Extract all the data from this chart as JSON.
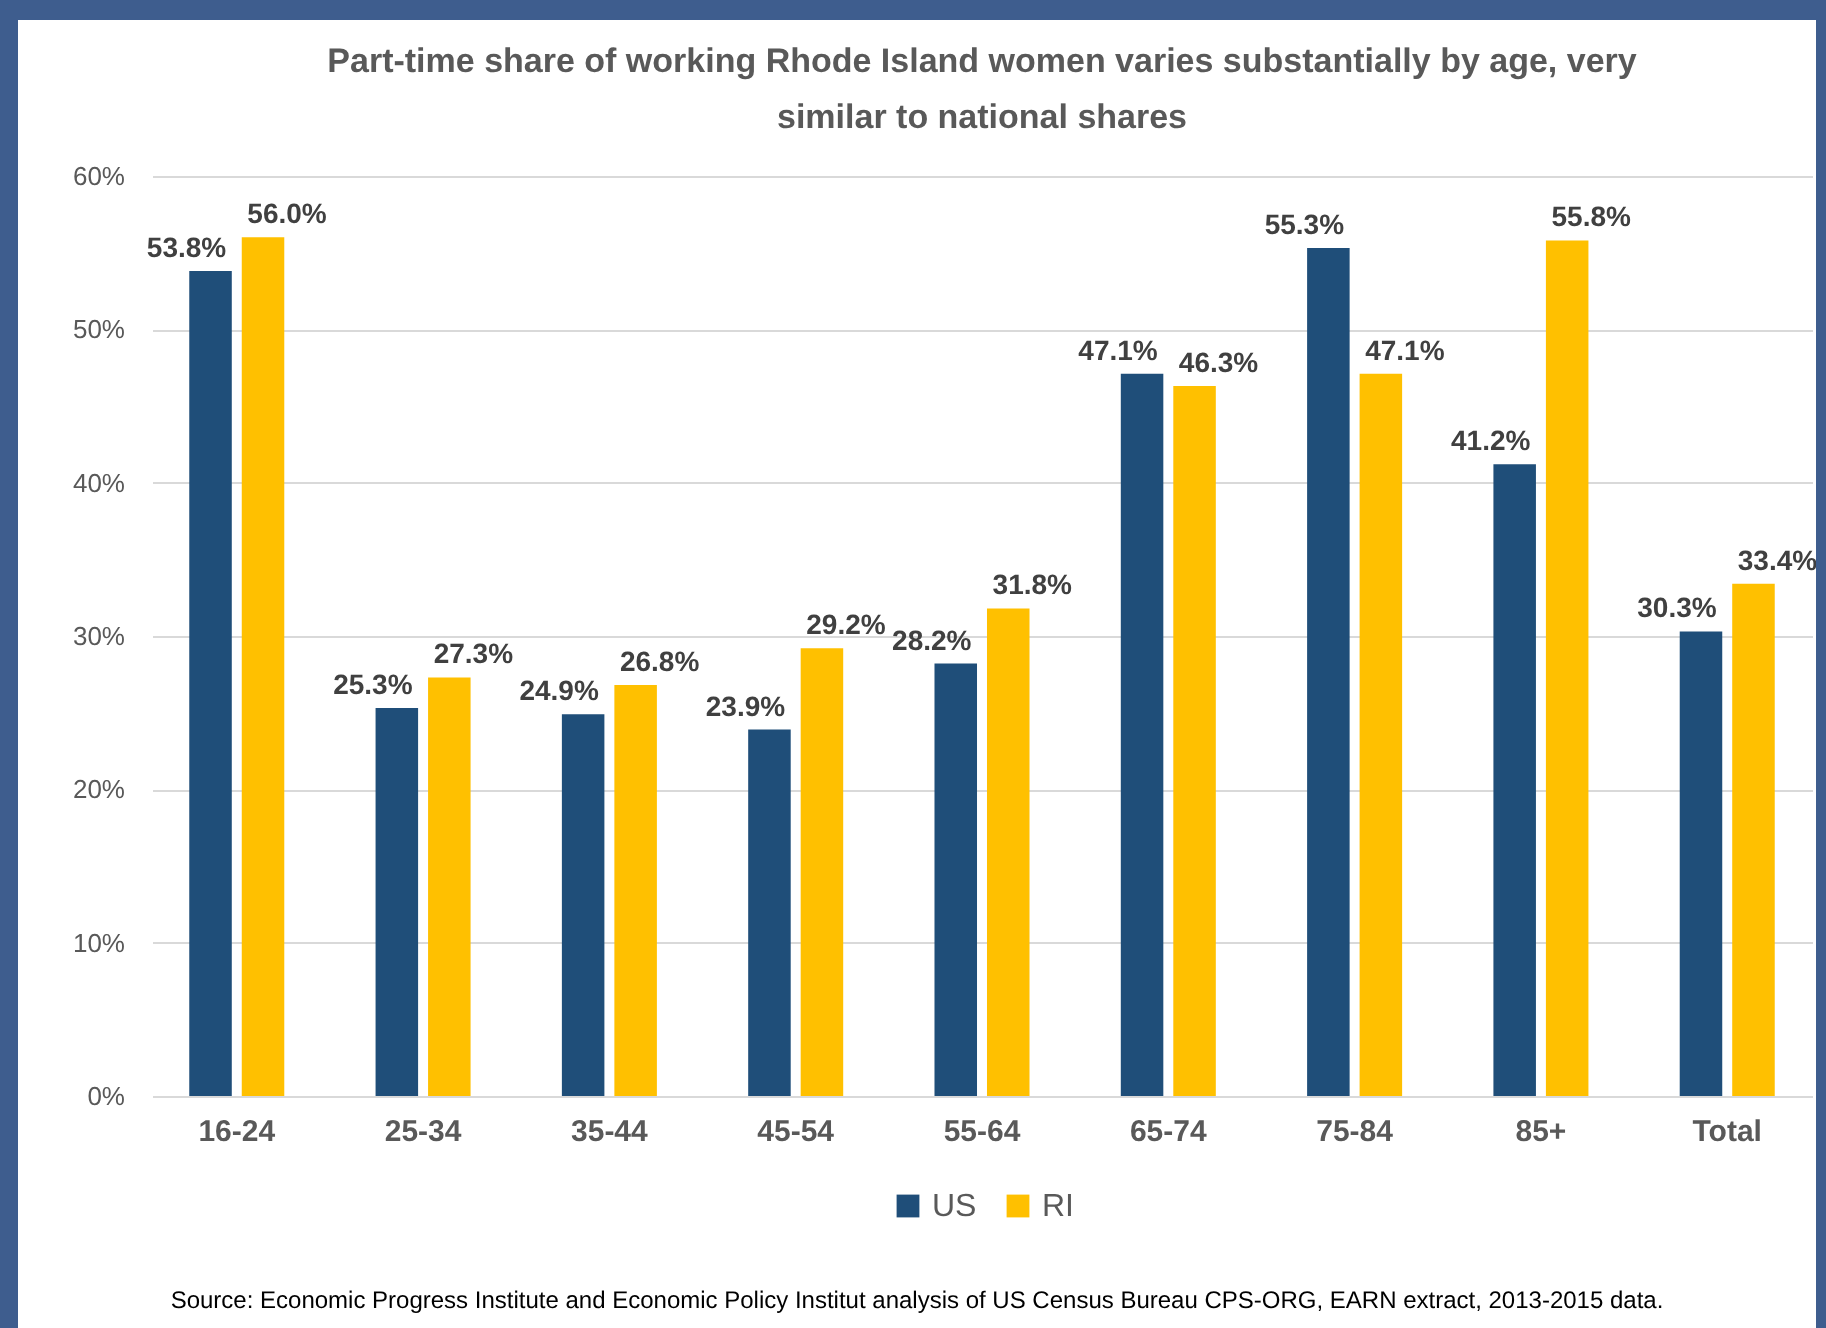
{
  "chart_data": {
    "type": "bar",
    "title": "Part-time share of working Rhode Island women varies substantially by age, very similar to national shares",
    "categories": [
      "16-24",
      "25-34",
      "35-44",
      "45-54",
      "55-64",
      "65-74",
      "75-84",
      "85+",
      "Total"
    ],
    "series": [
      {
        "name": "US",
        "color": "#1f4e79",
        "values": [
          53.8,
          25.3,
          24.9,
          23.9,
          28.2,
          47.1,
          55.3,
          41.2,
          30.3
        ],
        "value_labels": [
          "53.8%",
          "25.3%",
          "24.9%",
          "23.9%",
          "28.2%",
          "47.1%",
          "55.3%",
          "41.2%",
          "30.3%"
        ]
      },
      {
        "name": "RI",
        "color": "#ffc000",
        "values": [
          56.0,
          27.3,
          26.8,
          29.2,
          31.8,
          46.3,
          47.1,
          55.8,
          33.4
        ],
        "value_labels": [
          "56.0%",
          "27.3%",
          "26.8%",
          "29.2%",
          "31.8%",
          "46.3%",
          "47.1%",
          "55.8%",
          "33.4%"
        ]
      }
    ],
    "ylim": [
      0,
      60
    ],
    "yticks": [
      {
        "value": 0,
        "label": "0%"
      },
      {
        "value": 10,
        "label": "10%"
      },
      {
        "value": 20,
        "label": "20%"
      },
      {
        "value": 30,
        "label": "30%"
      },
      {
        "value": 40,
        "label": "40%"
      },
      {
        "value": 50,
        "label": "50%"
      },
      {
        "value": 60,
        "label": "60%"
      }
    ],
    "grid": "y",
    "legend": "bottom",
    "annotations": [
      "Source: Economic Progress Institute and Economic Policy Institut analysis of US Census Bureau CPS-ORG, EARN extract, 2013-2015 data."
    ]
  }
}
